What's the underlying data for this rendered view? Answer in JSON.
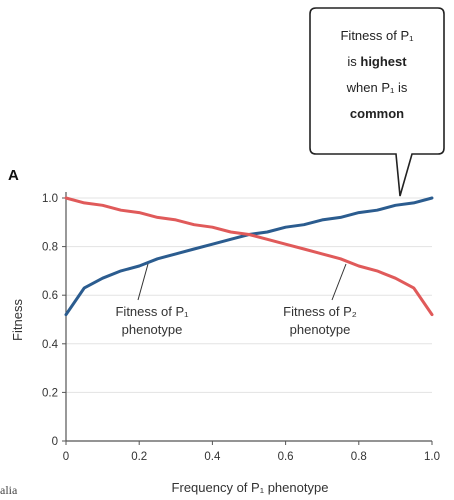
{
  "panel_label": "A",
  "callout": {
    "line1": "Fitness of P₁",
    "line2_pre": "is ",
    "line2_bold": "highest",
    "line3": "when P₁ is",
    "line4_bold": "common"
  },
  "curve_labels": {
    "p1_line1": "Fitness of P₁",
    "p1_line2": "phenotype",
    "p2_line1": "Fitness of P₂",
    "p2_line2": "phenotype"
  },
  "stray_text": "alia",
  "colors": {
    "p1": "#2b5c8f",
    "p2": "#e05a5a",
    "axis": "#555555"
  },
  "chart_data": {
    "type": "line",
    "title": "",
    "xlabel": "Frequency of P₁ phenotype",
    "ylabel": "Fitness",
    "xlim": [
      0,
      1
    ],
    "ylim": [
      0,
      1.0
    ],
    "xticks": [
      0,
      0.2,
      0.4,
      0.6,
      0.8,
      1.0
    ],
    "xtick_labels": [
      "0",
      "0.2",
      "0.4",
      "0.6",
      "0.8",
      "1.0"
    ],
    "yticks": [
      0,
      0.2,
      0.4,
      0.6,
      0.8,
      1.0
    ],
    "ytick_labels": [
      "0",
      "0.2",
      "0.4",
      "0.6",
      "0.8",
      "1.0"
    ],
    "grid": true,
    "x": [
      0,
      0.05,
      0.1,
      0.15,
      0.2,
      0.25,
      0.3,
      0.35,
      0.4,
      0.45,
      0.5,
      0.55,
      0.6,
      0.65,
      0.7,
      0.75,
      0.8,
      0.85,
      0.9,
      0.95,
      1.0
    ],
    "series": [
      {
        "name": "Fitness of P₁ phenotype",
        "values": [
          0.52,
          0.63,
          0.67,
          0.7,
          0.72,
          0.75,
          0.77,
          0.79,
          0.81,
          0.83,
          0.85,
          0.86,
          0.88,
          0.89,
          0.91,
          0.92,
          0.94,
          0.95,
          0.97,
          0.98,
          1.0
        ]
      },
      {
        "name": "Fitness of P₂ phenotype",
        "values": [
          1.0,
          0.98,
          0.97,
          0.95,
          0.94,
          0.92,
          0.91,
          0.89,
          0.88,
          0.86,
          0.85,
          0.83,
          0.81,
          0.79,
          0.77,
          0.75,
          0.72,
          0.7,
          0.67,
          0.63,
          0.52
        ]
      }
    ]
  }
}
